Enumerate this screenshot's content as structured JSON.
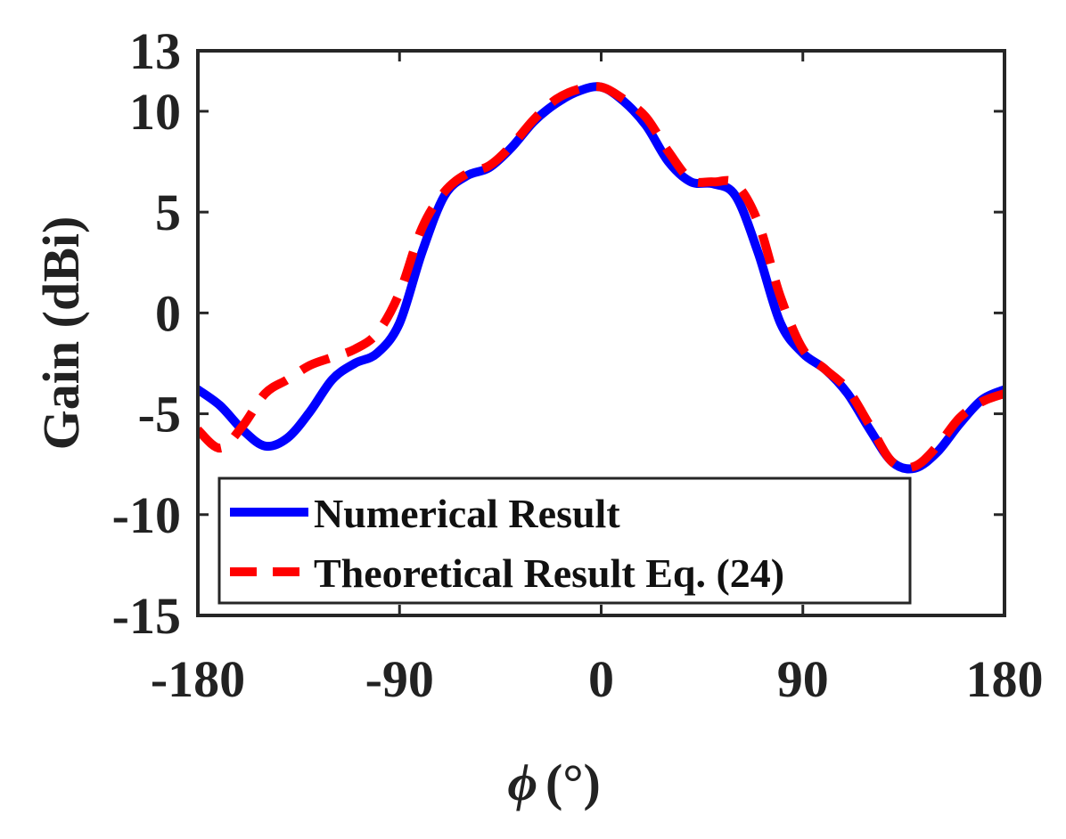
{
  "chart_data": {
    "type": "line",
    "xlabel_symbol": "ϕ",
    "xlabel_unit": "(°)",
    "ylabel": "Gain (dBi)",
    "xlim": [
      -180,
      180
    ],
    "ylim": [
      -15,
      13
    ],
    "xticks": [
      -180,
      -90,
      0,
      90,
      180
    ],
    "yticks": [
      -15,
      -10,
      -5,
      0,
      5,
      10,
      13
    ],
    "grid": false,
    "legend_position": "bottom-center",
    "series": [
      {
        "name": "Numerical Result",
        "color": "#0000ff",
        "style": "solid",
        "x": [
          -180,
          -170,
          -160,
          -150,
          -140,
          -130,
          -120,
          -110,
          -100,
          -90,
          -80,
          -70,
          -60,
          -50,
          -40,
          -30,
          -20,
          -10,
          0,
          10,
          20,
          30,
          40,
          50,
          60,
          70,
          80,
          90,
          100,
          110,
          120,
          130,
          140,
          150,
          160,
          170,
          180
        ],
        "y": [
          -3.8,
          -4.6,
          -5.8,
          -6.6,
          -6.2,
          -4.9,
          -3.3,
          -2.5,
          -2.0,
          -0.5,
          3.0,
          5.8,
          6.8,
          7.2,
          8.2,
          9.5,
          10.4,
          11.0,
          11.2,
          10.5,
          9.3,
          7.5,
          6.5,
          6.4,
          5.8,
          3.0,
          -0.5,
          -2.0,
          -2.8,
          -4.0,
          -5.8,
          -7.4,
          -7.7,
          -6.9,
          -5.5,
          -4.3,
          -3.8
        ]
      },
      {
        "name": "Theoretical Result Eq. (24)",
        "color": "#ff0000",
        "style": "dashed",
        "x": [
          -180,
          -170,
          -160,
          -150,
          -140,
          -130,
          -120,
          -110,
          -100,
          -90,
          -80,
          -70,
          -60,
          -50,
          -40,
          -30,
          -20,
          -10,
          0,
          10,
          20,
          30,
          40,
          50,
          60,
          70,
          80,
          90,
          100,
          110,
          120,
          130,
          140,
          150,
          160,
          170,
          180
        ],
        "y": [
          -5.8,
          -6.7,
          -5.6,
          -4.0,
          -3.3,
          -2.6,
          -2.2,
          -1.8,
          -1.0,
          1.0,
          4.2,
          6.0,
          6.9,
          7.3,
          8.3,
          9.6,
          10.6,
          11.1,
          11.2,
          10.6,
          9.7,
          8.0,
          6.6,
          6.5,
          6.4,
          4.5,
          0.8,
          -1.8,
          -2.8,
          -3.8,
          -5.6,
          -7.4,
          -7.6,
          -6.6,
          -5.2,
          -4.4,
          -4.0
        ]
      }
    ]
  }
}
